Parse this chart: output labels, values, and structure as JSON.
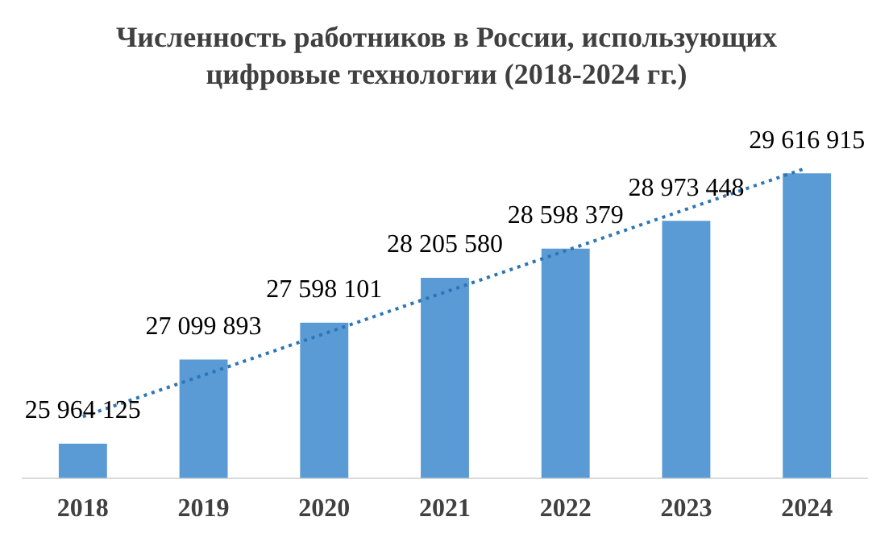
{
  "chart_data": {
    "type": "bar",
    "title": "Численность работников в России, использующих цифровые технологии  (2018-2024 гг.)",
    "categories": [
      "2018",
      "2019",
      "2020",
      "2021",
      "2022",
      "2023",
      "2024"
    ],
    "series": [
      {
        "color": "#5b9bd5",
        "values": [
          25964125,
          27099893,
          27598101,
          28205580,
          28598379,
          28973448,
          29616915
        ],
        "value_labels": [
          "25 964 125",
          "27 099 893",
          "27 598 101",
          "28 205 580",
          "28 598 379",
          "28 973 448",
          "29 616 915"
        ]
      },
      {
        "type": "line",
        "color": "#2e75b6",
        "line_style": "dotted",
        "marker": "none",
        "values": [
          26330000,
          26890000,
          27450000,
          28010000,
          28570000,
          29130000,
          29690000
        ]
      }
    ],
    "tick_labels": "x",
    "grid": false,
    "legend": false
  }
}
